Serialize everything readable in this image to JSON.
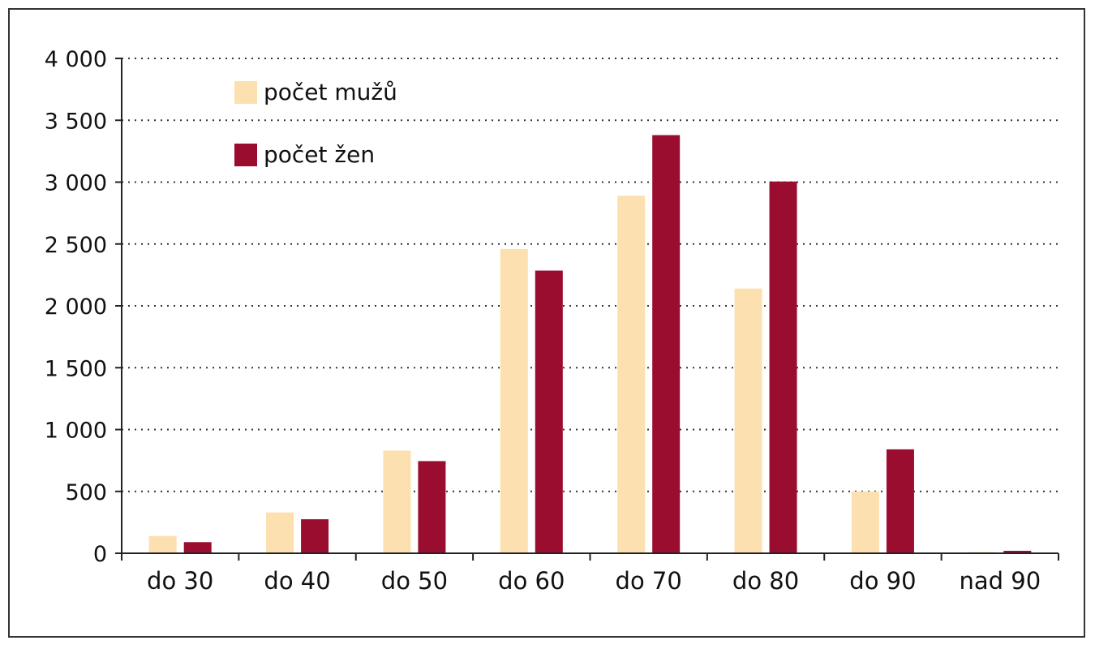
{
  "chart_data": {
    "type": "bar",
    "title": "",
    "xlabel": "",
    "ylabel": "",
    "categories": [
      "do 30",
      "do 40",
      "do 50",
      "do 60",
      "do 70",
      "do 80",
      "do 90",
      "nad 90"
    ],
    "series": [
      {
        "name": "počet mužů",
        "color": "#fde0b0",
        "values": [
          140,
          330,
          830,
          2460,
          2890,
          2140,
          500,
          10
        ]
      },
      {
        "name": "počet žen",
        "color": "#9b0d2f",
        "values": [
          90,
          275,
          745,
          2285,
          3380,
          3005,
          840,
          20
        ]
      }
    ],
    "ylim": [
      0,
      4000
    ],
    "yticks": [
      0,
      500,
      1000,
      1500,
      2000,
      2500,
      3000,
      3500,
      4000
    ],
    "ytick_labels": [
      "0",
      "500",
      "1 000",
      "1 500",
      "2 000",
      "2 500",
      "3 000",
      "3 500",
      "4 000"
    ],
    "grid": "horizontal dotted",
    "legend_position": "top-left"
  }
}
